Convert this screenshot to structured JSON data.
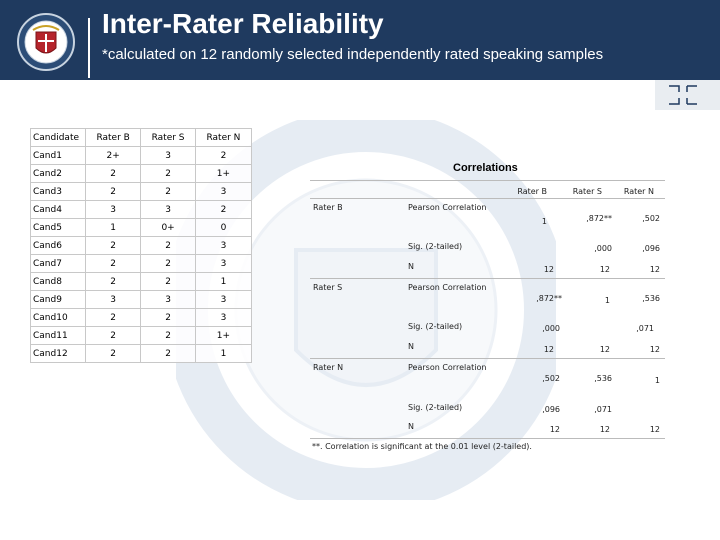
{
  "header": {
    "title": "Inter-Rater Reliability",
    "subtitle": "*calculated  on 12 randomly selected independently rated speaking samples"
  },
  "colors": {
    "header_bg": "#1f3a5f",
    "grid": "#c8c8c8"
  },
  "ratings": {
    "headers": [
      "Candidate",
      "Rater B",
      "Rater S",
      "Rater N"
    ],
    "rows": [
      [
        "Cand1",
        "2+",
        "3",
        "2"
      ],
      [
        "Cand2",
        "2",
        "2",
        "1+"
      ],
      [
        "Cand3",
        "2",
        "2",
        "3"
      ],
      [
        "Cand4",
        "3",
        "3",
        "2"
      ],
      [
        "Cand5",
        "1",
        "0+",
        "0"
      ],
      [
        "Cand6",
        "2",
        "2",
        "3"
      ],
      [
        "Cand7",
        "2",
        "2",
        "3"
      ],
      [
        "Cand8",
        "2",
        "2",
        "1"
      ],
      [
        "Cand9",
        "3",
        "3",
        "3"
      ],
      [
        "Cand10",
        "2",
        "2",
        "3"
      ],
      [
        "Cand11",
        "2",
        "2",
        "1+"
      ],
      [
        "Cand12",
        "2",
        "2",
        "1"
      ]
    ]
  },
  "correlations": {
    "title": "Correlations",
    "columns": [
      "Rater B",
      "Rater S",
      "Rater N"
    ],
    "blocks": [
      {
        "rater": "Rater B",
        "pearson_label": "Pearson Correlation",
        "pearson": [
          "1",
          ",872**",
          ",502"
        ],
        "sig_label": "Sig. (2-tailed)",
        "sig": [
          "",
          ",000",
          ",096"
        ],
        "n_label": "N",
        "n": [
          "12",
          "12",
          "12"
        ]
      },
      {
        "rater": "Rater S",
        "pearson_label": "Pearson Correlation",
        "pearson": [
          ",872**",
          "1",
          ",536"
        ],
        "sig_label": "Sig. (2-tailed)",
        "sig": [
          ",000",
          "",
          ",071"
        ],
        "n_label": "N",
        "n": [
          "12",
          "12",
          "12"
        ]
      },
      {
        "rater": "Rater N",
        "pearson_label": "Pearson Correlation",
        "pearson": [
          ",502",
          ",536",
          "1"
        ],
        "sig_label": "Sig. (2-tailed)",
        "sig": [
          ",096",
          ",071",
          ""
        ],
        "n_label": "N",
        "n": [
          "12",
          "12",
          "12"
        ]
      }
    ],
    "footnote": "**. Correlation is significant at the 0.01 level (2-tailed)."
  }
}
